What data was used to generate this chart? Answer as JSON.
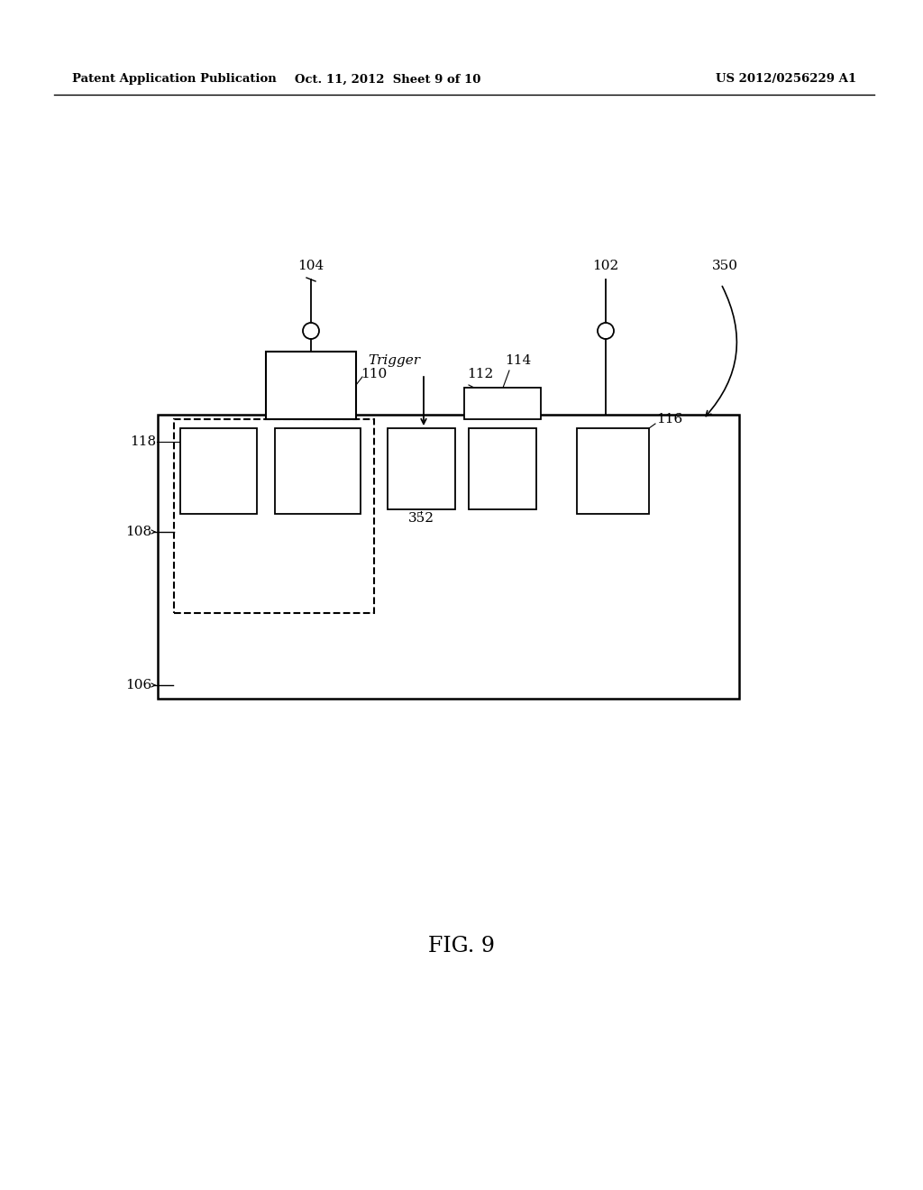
{
  "bg_color": "#ffffff",
  "line_color": "#000000",
  "header_left": "Patent Application Publication",
  "header_mid": "Oct. 11, 2012  Sheet 9 of 10",
  "header_right": "US 2012/0256229 A1",
  "fig_label": "FIG. 9"
}
